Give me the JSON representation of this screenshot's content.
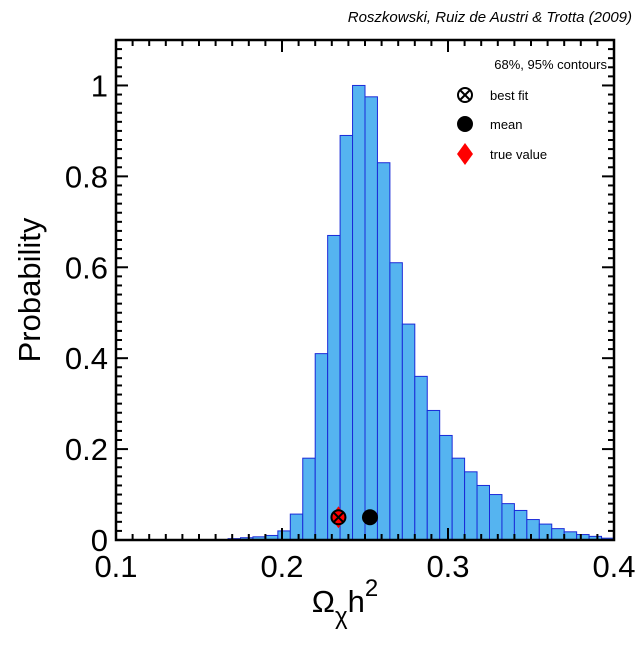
{
  "attribution": "Roszkowski, Ruiz de Austri & Trotta (2009)",
  "colors": {
    "bar_fill": "#55b4f0",
    "bar_edge": "#1a2ad8",
    "true_value": "#ff0000",
    "marker": "#000000"
  },
  "chart_data": {
    "type": "bar",
    "title": "",
    "xlabel": "Ω",
    "xlabel_sub": "χ",
    "xlabel_tail": "h",
    "xlabel_sup": "2",
    "ylabel": "Probability",
    "xlim": [
      0.1,
      0.4
    ],
    "ylim": [
      0,
      1.1
    ],
    "xticks": [
      0.1,
      0.2,
      0.3,
      0.4
    ],
    "yticks": [
      0,
      0.2,
      0.4,
      0.6,
      0.8,
      1
    ],
    "xtick_labels": [
      "0.1",
      "0.2",
      "0.3",
      "0.4"
    ],
    "ytick_labels": [
      "0",
      "0.2",
      "0.4",
      "0.6",
      "0.8",
      "1"
    ],
    "bin_width": 0.0075,
    "bin_starts": [
      0.1675,
      0.175,
      0.1825,
      0.19,
      0.1975,
      0.205,
      0.2125,
      0.22,
      0.2275,
      0.235,
      0.2425,
      0.25,
      0.2575,
      0.265,
      0.2725,
      0.28,
      0.2875,
      0.295,
      0.3025,
      0.31,
      0.3175,
      0.325,
      0.3325,
      0.34,
      0.3475,
      0.355,
      0.3625,
      0.37,
      0.3775,
      0.385,
      0.3925
    ],
    "values": [
      0.003,
      0.005,
      0.007,
      0.01,
      0.02,
      0.057,
      0.18,
      0.41,
      0.67,
      0.89,
      1.0,
      0.975,
      0.83,
      0.61,
      0.475,
      0.36,
      0.285,
      0.23,
      0.18,
      0.15,
      0.12,
      0.1,
      0.08,
      0.065,
      0.045,
      0.035,
      0.025,
      0.018,
      0.012,
      0.008,
      0.004
    ],
    "markers": {
      "best_fit": {
        "x": 0.234,
        "y": 0.05
      },
      "mean": {
        "x": 0.253,
        "y": 0.05
      },
      "true_value": {
        "x": 0.234,
        "y": 0.05
      }
    },
    "legend": {
      "placement": "top-right",
      "header": "68%, 95% contours",
      "items": [
        {
          "label": "best fit",
          "symbol": "circle-x"
        },
        {
          "label": "mean",
          "symbol": "filled-circle"
        },
        {
          "label": "true value",
          "symbol": "red-diamond"
        }
      ]
    },
    "grid": false
  }
}
